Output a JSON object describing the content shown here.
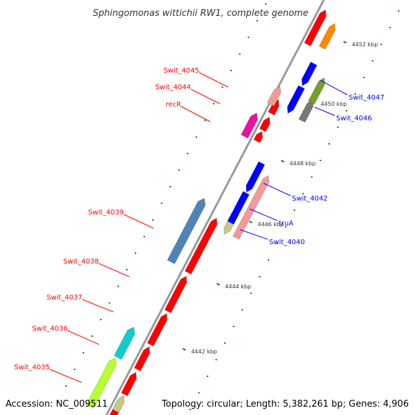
{
  "title": "Sphingomonas wittichii RW1, complete genome",
  "accession": "Accession: NC_009511",
  "summary": "Topology: circular; Length: 5,382,261 bp; Genes: 4,906",
  "ticks": [
    "4442 kbp",
    "4444 kbp",
    "4446 kbp",
    "4448 kbp",
    "4450 kbp",
    "4452 kbp"
  ],
  "left_labels": [
    "Swit_4045",
    "Swit_4044",
    "recR",
    "Swit_4039",
    "Swit_4038",
    "Swit_4037",
    "Swit_4036",
    "Swit_4035"
  ],
  "right_labels": [
    "Swit_4047",
    "Swit_4046",
    "Swit_4042",
    "truA",
    "Swit_4040"
  ],
  "colors": {
    "left_label": "#ff0000",
    "right_label": "#0000ff",
    "gene_red": "#ff0000",
    "gene_blue": "#0000ff",
    "gene_salmon": "#f29a9a",
    "gene_steelblue": "#4f84b8",
    "gene_cyan": "#11cccc",
    "gene_lime": "#b6ff33",
    "gene_magenta": "#ee1199",
    "gene_orange": "#ff8800",
    "gene_olive": "#77a02a",
    "gene_gray": "#777777",
    "gene_khaki": "#c8c884",
    "backbone": "#999999",
    "tick": "#007700"
  }
}
